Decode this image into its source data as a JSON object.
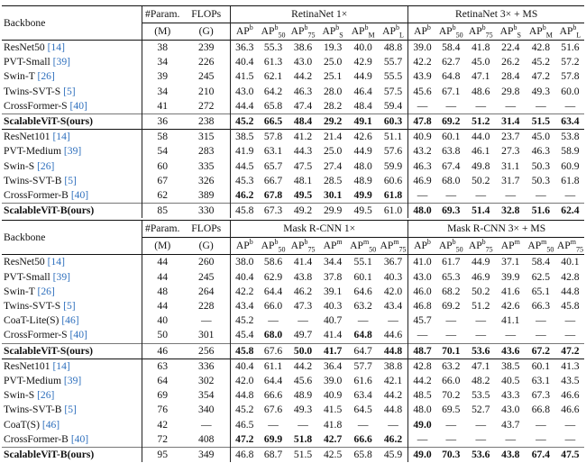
{
  "caption_fragment": "",
  "table1": {
    "header1": [
      "Backbone",
      "#Param.",
      "FLOPs",
      "RetinaNet 1×",
      "RetinaNet 3× + MS"
    ],
    "header2_units": [
      "(M)",
      "(G)"
    ],
    "metrics": [
      "AP<sup>b</sup>",
      "AP<sup>b</sup><sub>50</sub>",
      "AP<sup>b</sup><sub>75</sub>",
      "AP<sup>b</sup><sub>S</sub>",
      "AP<sup>b</sup><sub>M</sub>",
      "AP<sup>b</sup><sub>L</sub>"
    ],
    "groups": [
      [
        {
          "name": "ResNet50",
          "cite": "[14]",
          "bold": false,
          "vals": [
            "38",
            "239",
            "36.3",
            "55.3",
            "38.6",
            "19.3",
            "40.0",
            "48.8",
            "39.0",
            "58.4",
            "41.8",
            "22.4",
            "42.8",
            "51.6"
          ]
        },
        {
          "name": "PVT-Small",
          "cite": "[39]",
          "bold": false,
          "vals": [
            "34",
            "226",
            "40.4",
            "61.3",
            "43.0",
            "25.0",
            "42.9",
            "55.7",
            "42.2",
            "62.7",
            "45.0",
            "26.2",
            "45.2",
            "57.2"
          ]
        },
        {
          "name": "Swin-T",
          "cite": "[26]",
          "bold": false,
          "vals": [
            "39",
            "245",
            "41.5",
            "62.1",
            "44.2",
            "25.1",
            "44.9",
            "55.5",
            "43.9",
            "64.8",
            "47.1",
            "28.4",
            "47.2",
            "57.8"
          ]
        },
        {
          "name": "Twins-SVT-S",
          "cite": "[5]",
          "bold": false,
          "vals": [
            "34",
            "210",
            "43.0",
            "64.2",
            "46.3",
            "28.0",
            "46.4",
            "57.5",
            "45.6",
            "67.1",
            "48.6",
            "29.8",
            "49.3",
            "60.0"
          ]
        },
        {
          "name": "CrossFormer-S",
          "cite": "[40]",
          "bold": false,
          "vals": [
            "41",
            "272",
            "44.4",
            "65.8",
            "47.4",
            "28.2",
            "48.4",
            "59.4",
            "—",
            "—",
            "—",
            "—",
            "—",
            "—"
          ]
        },
        {
          "name": "ScalableViT-S(ours)",
          "cite": "",
          "bold": true,
          "vals": [
            "36",
            "238",
            "45.2",
            "66.5",
            "48.4",
            "29.2",
            "49.1",
            "60.3",
            "47.8",
            "69.2",
            "51.2",
            "31.4",
            "51.5",
            "63.4"
          ],
          "boldIdx": [
            2,
            3,
            4,
            5,
            6,
            7,
            8,
            9,
            10,
            11,
            12,
            13
          ]
        }
      ],
      [
        {
          "name": "ResNet101",
          "cite": "[14]",
          "bold": false,
          "vals": [
            "58",
            "315",
            "38.5",
            "57.8",
            "41.2",
            "21.4",
            "42.6",
            "51.1",
            "40.9",
            "60.1",
            "44.0",
            "23.7",
            "45.0",
            "53.8"
          ]
        },
        {
          "name": "PVT-Medium",
          "cite": "[39]",
          "bold": false,
          "vals": [
            "54",
            "283",
            "41.9",
            "63.1",
            "44.3",
            "25.0",
            "44.9",
            "57.6",
            "43.2",
            "63.8",
            "46.1",
            "27.3",
            "46.3",
            "58.9"
          ]
        },
        {
          "name": "Swin-S",
          "cite": "[26]",
          "bold": false,
          "vals": [
            "60",
            "335",
            "44.5",
            "65.7",
            "47.5",
            "27.4",
            "48.0",
            "59.9",
            "46.3",
            "67.4",
            "49.8",
            "31.1",
            "50.3",
            "60.9"
          ]
        },
        {
          "name": "Twins-SVT-B",
          "cite": "[5]",
          "bold": false,
          "vals": [
            "67",
            "326",
            "45.3",
            "66.7",
            "48.1",
            "28.5",
            "48.9",
            "60.6",
            "46.9",
            "68.0",
            "50.2",
            "31.7",
            "50.3",
            "61.8"
          ]
        },
        {
          "name": "CrossFormer-B",
          "cite": "[40]",
          "bold": false,
          "vals": [
            "62",
            "389",
            "46.2",
            "67.8",
            "49.5",
            "30.1",
            "49.9",
            "61.8",
            "—",
            "—",
            "—",
            "—",
            "—",
            "—"
          ],
          "boldIdx": [
            2,
            3,
            4,
            5,
            6,
            7
          ]
        },
        {
          "name": "ScalableViT-B(ours)",
          "cite": "",
          "bold": true,
          "vals": [
            "85",
            "330",
            "45.8",
            "67.3",
            "49.2",
            "29.9",
            "49.5",
            "61.0",
            "48.0",
            "69.3",
            "51.4",
            "32.8",
            "51.6",
            "62.4"
          ],
          "boldIdx": [
            8,
            9,
            10,
            11,
            12,
            13
          ]
        }
      ]
    ]
  },
  "table2": {
    "header1": [
      "Backbone",
      "#Param.",
      "FLOPs",
      "Mask R-CNN 1×",
      "Mask R-CNN 3× + MS"
    ],
    "header2_units": [
      "(M)",
      "(G)"
    ],
    "metrics": [
      "AP<sup>b</sup>",
      "AP<sup>b</sup><sub>50</sub>",
      "AP<sup>b</sup><sub>75</sub>",
      "AP<sup>m</sup>",
      "AP<sup>m</sup><sub>50</sub>",
      "AP<sup>m</sup><sub>75</sub>"
    ],
    "groups": [
      [
        {
          "name": "ResNet50",
          "cite": "[14]",
          "bold": false,
          "vals": [
            "44",
            "260",
            "38.0",
            "58.6",
            "41.4",
            "34.4",
            "55.1",
            "36.7",
            "41.0",
            "61.7",
            "44.9",
            "37.1",
            "58.4",
            "40.1"
          ]
        },
        {
          "name": "PVT-Small",
          "cite": "[39]",
          "bold": false,
          "vals": [
            "44",
            "245",
            "40.4",
            "62.9",
            "43.8",
            "37.8",
            "60.1",
            "40.3",
            "43.0",
            "65.3",
            "46.9",
            "39.9",
            "62.5",
            "42.8"
          ]
        },
        {
          "name": "Swin-T",
          "cite": "[26]",
          "bold": false,
          "vals": [
            "48",
            "264",
            "42.2",
            "64.4",
            "46.2",
            "39.1",
            "64.6",
            "42.0",
            "46.0",
            "68.2",
            "50.2",
            "41.6",
            "65.1",
            "44.8"
          ]
        },
        {
          "name": "Twins-SVT-S",
          "cite": "[5]",
          "bold": false,
          "vals": [
            "44",
            "228",
            "43.4",
            "66.0",
            "47.3",
            "40.3",
            "63.2",
            "43.4",
            "46.8",
            "69.2",
            "51.2",
            "42.6",
            "66.3",
            "45.8"
          ]
        },
        {
          "name": "CoaT-Lite(S)",
          "cite": "[46]",
          "bold": false,
          "vals": [
            "40",
            "—",
            "45.2",
            "—",
            "—",
            "40.7",
            "—",
            "—",
            "45.7",
            "—",
            "—",
            "41.1",
            "—",
            "—"
          ]
        },
        {
          "name": "CrossFormer-S",
          "cite": "[40]",
          "bold": false,
          "vals": [
            "50",
            "301",
            "45.4",
            "68.0",
            "49.7",
            "41.4",
            "64.8",
            "44.6",
            "—",
            "—",
            "—",
            "—",
            "—",
            "—"
          ],
          "boldIdx": [
            3,
            6
          ]
        },
        {
          "name": "ScalableViT-S(ours)",
          "cite": "",
          "bold": true,
          "vals": [
            "46",
            "256",
            "45.8",
            "67.6",
            "50.0",
            "41.7",
            "64.7",
            "44.8",
            "48.7",
            "70.1",
            "53.6",
            "43.6",
            "67.2",
            "47.2"
          ],
          "boldIdx": [
            2,
            4,
            5,
            7,
            8,
            9,
            10,
            11,
            12,
            13
          ]
        }
      ],
      [
        {
          "name": "ResNet101",
          "cite": "[14]",
          "bold": false,
          "vals": [
            "63",
            "336",
            "40.4",
            "61.1",
            "44.2",
            "36.4",
            "57.7",
            "38.8",
            "42.8",
            "63.2",
            "47.1",
            "38.5",
            "60.1",
            "41.3"
          ]
        },
        {
          "name": "PVT-Medium",
          "cite": "[39]",
          "bold": false,
          "vals": [
            "64",
            "302",
            "42.0",
            "64.4",
            "45.6",
            "39.0",
            "61.6",
            "42.1",
            "44.2",
            "66.0",
            "48.2",
            "40.5",
            "63.1",
            "43.5"
          ]
        },
        {
          "name": "Swin-S",
          "cite": "[26]",
          "bold": false,
          "vals": [
            "69",
            "354",
            "44.8",
            "66.6",
            "48.9",
            "40.9",
            "63.4",
            "44.2",
            "48.5",
            "70.2",
            "53.5",
            "43.3",
            "67.3",
            "46.6"
          ]
        },
        {
          "name": "Twins-SVT-B",
          "cite": "[5]",
          "bold": false,
          "vals": [
            "76",
            "340",
            "45.2",
            "67.6",
            "49.3",
            "41.5",
            "64.5",
            "44.8",
            "48.0",
            "69.5",
            "52.7",
            "43.0",
            "66.8",
            "46.6"
          ]
        },
        {
          "name": "CoaT(S)",
          "cite": "[46]",
          "bold": false,
          "vals": [
            "42",
            "—",
            "46.5",
            "—",
            "—",
            "41.8",
            "—",
            "—",
            "49.0",
            "—",
            "—",
            "43.7",
            "—",
            "—"
          ],
          "boldIdx": [
            8
          ]
        },
        {
          "name": "CrossFormer-B",
          "cite": "[40]",
          "bold": false,
          "vals": [
            "72",
            "408",
            "47.2",
            "69.9",
            "51.8",
            "42.7",
            "66.6",
            "46.2",
            "—",
            "—",
            "—",
            "—",
            "—",
            "—"
          ],
          "boldIdx": [
            2,
            3,
            4,
            5,
            6,
            7
          ]
        },
        {
          "name": "ScalableViT-B(ours)",
          "cite": "",
          "bold": true,
          "vals": [
            "95",
            "349",
            "46.8",
            "68.7",
            "51.5",
            "42.5",
            "65.8",
            "45.9",
            "49.0",
            "70.3",
            "53.6",
            "43.8",
            "67.4",
            "47.5"
          ],
          "boldIdx": [
            8,
            9,
            10,
            11,
            12,
            13
          ]
        }
      ]
    ]
  }
}
